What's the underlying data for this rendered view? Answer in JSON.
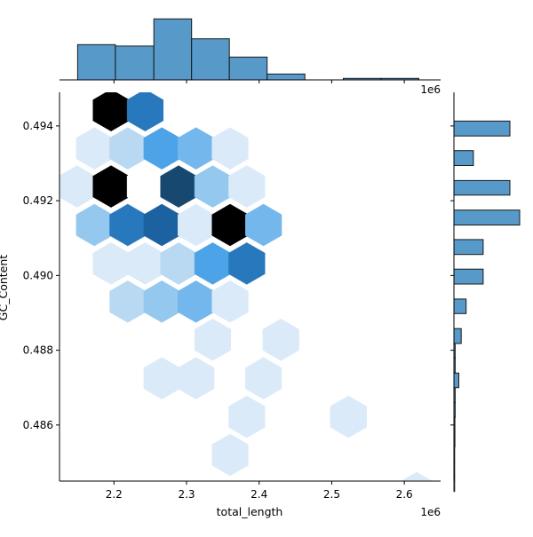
{
  "chart_data": {
    "type": "hexbin-jointplot",
    "xlabel": "total_length",
    "ylabel": "GC_Content",
    "x_offset_text": "1e6",
    "top_offset_text": "1e6",
    "xlim": [
      2.125,
      2.65
    ],
    "ylim": [
      0.4845,
      0.4949
    ],
    "x_ticks": [
      {
        "value": 2.2,
        "label": "2.2"
      },
      {
        "value": 2.3,
        "label": "2.3"
      },
      {
        "value": 2.4,
        "label": "2.4"
      },
      {
        "value": 2.5,
        "label": "2.5"
      },
      {
        "value": 2.6,
        "label": "2.6"
      }
    ],
    "y_ticks": [
      {
        "value": 0.486,
        "label": "0.486"
      },
      {
        "value": 0.488,
        "label": "0.488"
      },
      {
        "value": 0.49,
        "label": "0.490"
      },
      {
        "value": 0.492,
        "label": "0.492"
      },
      {
        "value": 0.494,
        "label": "0.494"
      }
    ],
    "hexbins": [
      {
        "x": 2.196,
        "y": 0.49442,
        "color": "#000000"
      },
      {
        "x": 2.243,
        "y": 0.49442,
        "color": "#2878bd"
      },
      {
        "x": 2.173,
        "y": 0.4934,
        "color": "#dbeaf8"
      },
      {
        "x": 2.219,
        "y": 0.4934,
        "color": "#b9d8f2"
      },
      {
        "x": 2.266,
        "y": 0.4934,
        "color": "#4ca3e8"
      },
      {
        "x": 2.313,
        "y": 0.4934,
        "color": "#74b7ec"
      },
      {
        "x": 2.36,
        "y": 0.4934,
        "color": "#dbeaf8"
      },
      {
        "x": 2.149,
        "y": 0.49238,
        "color": "#dbeaf8"
      },
      {
        "x": 2.196,
        "y": 0.49238,
        "color": "#000000"
      },
      {
        "x": 2.243,
        "y": 0.49238,
        "color": "#ffffff"
      },
      {
        "x": 2.289,
        "y": 0.49238,
        "color": "#164870"
      },
      {
        "x": 2.336,
        "y": 0.49238,
        "color": "#94c8ef"
      },
      {
        "x": 2.383,
        "y": 0.49238,
        "color": "#dbeaf8"
      },
      {
        "x": 2.173,
        "y": 0.49135,
        "color": "#94c8ef"
      },
      {
        "x": 2.219,
        "y": 0.49135,
        "color": "#2878bd"
      },
      {
        "x": 2.266,
        "y": 0.49135,
        "color": "#1c62a0"
      },
      {
        "x": 2.313,
        "y": 0.49135,
        "color": "#dbeaf8"
      },
      {
        "x": 2.36,
        "y": 0.49135,
        "color": "#000000"
      },
      {
        "x": 2.406,
        "y": 0.49135,
        "color": "#74b7ec"
      },
      {
        "x": 2.196,
        "y": 0.49032,
        "color": "#dbeaf8"
      },
      {
        "x": 2.243,
        "y": 0.49032,
        "color": "#dbeaf8"
      },
      {
        "x": 2.289,
        "y": 0.49032,
        "color": "#b9d8f2"
      },
      {
        "x": 2.336,
        "y": 0.49032,
        "color": "#4ca3e8"
      },
      {
        "x": 2.383,
        "y": 0.49032,
        "color": "#2878bd"
      },
      {
        "x": 2.219,
        "y": 0.4893,
        "color": "#b9d8f2"
      },
      {
        "x": 2.266,
        "y": 0.4893,
        "color": "#94c8ef"
      },
      {
        "x": 2.313,
        "y": 0.4893,
        "color": "#74b7ec"
      },
      {
        "x": 2.36,
        "y": 0.4893,
        "color": "#dbeaf8"
      },
      {
        "x": 2.336,
        "y": 0.48828,
        "color": "#dbeaf8"
      },
      {
        "x": 2.43,
        "y": 0.48828,
        "color": "#dbeaf8"
      },
      {
        "x": 2.266,
        "y": 0.48725,
        "color": "#dbeaf8"
      },
      {
        "x": 2.313,
        "y": 0.48725,
        "color": "#dbeaf8"
      },
      {
        "x": 2.406,
        "y": 0.48725,
        "color": "#dbeaf8"
      },
      {
        "x": 2.383,
        "y": 0.48622,
        "color": "#dbeaf8"
      },
      {
        "x": 2.523,
        "y": 0.48622,
        "color": "#dbeaf8"
      },
      {
        "x": 2.36,
        "y": 0.4852,
        "color": "#dbeaf8"
      },
      {
        "x": 2.617,
        "y": 0.48418,
        "color": "#dbeaf8"
      }
    ],
    "marginal_x": {
      "type": "histogram",
      "bins": [
        {
          "x0": 2.15,
          "x1": 2.202,
          "count": 48
        },
        {
          "x0": 2.202,
          "x1": 2.255,
          "count": 46
        },
        {
          "x0": 2.255,
          "x1": 2.307,
          "count": 83
        },
        {
          "x0": 2.307,
          "x1": 2.359,
          "count": 56
        },
        {
          "x0": 2.359,
          "x1": 2.411,
          "count": 31
        },
        {
          "x0": 2.411,
          "x1": 2.463,
          "count": 8
        },
        {
          "x0": 2.463,
          "x1": 2.516,
          "count": 0
        },
        {
          "x0": 2.516,
          "x1": 2.568,
          "count": 2
        },
        {
          "x0": 2.568,
          "x1": 2.62,
          "count": 2
        }
      ],
      "ymax": 87
    },
    "marginal_y": {
      "type": "histogram",
      "bins": [
        {
          "y0": 0.48422,
          "y1": 0.48462,
          "count": 0.3
        },
        {
          "y0": 0.48462,
          "y1": 0.48501,
          "count": 0.3
        },
        {
          "y0": 0.48501,
          "y1": 0.48541,
          "count": 0.3
        },
        {
          "y0": 0.48541,
          "y1": 0.48581,
          "count": 0.4
        },
        {
          "y0": 0.48581,
          "y1": 0.4862,
          "count": 0.4
        },
        {
          "y0": 0.4862,
          "y1": 0.4866,
          "count": 0.5
        },
        {
          "y0": 0.4866,
          "y1": 0.487,
          "count": 0.5
        },
        {
          "y0": 0.487,
          "y1": 0.48739,
          "count": 2
        },
        {
          "y0": 0.48739,
          "y1": 0.48779,
          "count": 0.5
        },
        {
          "y0": 0.48779,
          "y1": 0.48818,
          "count": 0.5
        },
        {
          "y0": 0.48818,
          "y1": 0.48858,
          "count": 3
        },
        {
          "y0": 0.48858,
          "y1": 0.48898,
          "count": 0
        },
        {
          "y0": 0.48898,
          "y1": 0.48937,
          "count": 5
        },
        {
          "y0": 0.48937,
          "y1": 0.48977,
          "count": 0
        },
        {
          "y0": 0.48977,
          "y1": 0.49017,
          "count": 12
        },
        {
          "y0": 0.49017,
          "y1": 0.49056,
          "count": 0
        },
        {
          "y0": 0.49056,
          "y1": 0.49096,
          "count": 12
        },
        {
          "y0": 0.49096,
          "y1": 0.49135,
          "count": 0
        },
        {
          "y0": 0.49135,
          "y1": 0.49175,
          "count": 27
        },
        {
          "y0": 0.49175,
          "y1": 0.49215,
          "count": 0
        },
        {
          "y0": 0.49215,
          "y1": 0.49254,
          "count": 23
        },
        {
          "y0": 0.49254,
          "y1": 0.49294,
          "count": 0
        },
        {
          "y0": 0.49294,
          "y1": 0.49334,
          "count": 8
        },
        {
          "y0": 0.49334,
          "y1": 0.49373,
          "count": 0
        },
        {
          "y0": 0.49373,
          "y1": 0.49413,
          "count": 23
        },
        {
          "y0": 0.49413,
          "y1": 0.49452,
          "count": 0
        }
      ],
      "xmax": 27
    },
    "colors": {
      "bar_fill": "#5799c8",
      "bar_edge": "#1a1a1a",
      "axis": "#000000"
    }
  }
}
